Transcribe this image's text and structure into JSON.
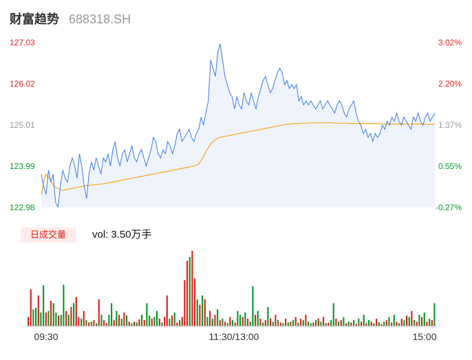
{
  "header": {
    "name": "财富趋势",
    "code": "688318.SH"
  },
  "colors": {
    "up": "#e2231a",
    "down": "#0a9a2c",
    "line": "#3d7be8",
    "avg": "#f5a623",
    "flat": "#999999",
    "fill": "#eef3fc"
  },
  "volume": {
    "badge": "日成交量",
    "label": "vol:",
    "value": "3.50万手"
  },
  "chart_data": [
    {
      "type": "line",
      "title": "",
      "y_left_ticks": [
        "127.03",
        "126.02",
        "125.01",
        "123.99",
        "122.98"
      ],
      "y_right_ticks": [
        "3.02%",
        "2.20%",
        "1.37%",
        "0.55%",
        "-0.27%"
      ],
      "ylim": [
        122.98,
        127.03
      ],
      "prev_close": 125.01,
      "x_labels": [
        "09:30",
        "11:30/13:00",
        "15:00"
      ],
      "series": [
        {
          "values": [
            123.8,
            123.5,
            123.3,
            123.9,
            123.6,
            123.8,
            123.1,
            123.0,
            123.5,
            123.9,
            123.7,
            123.6,
            124.0,
            124.2,
            124.0,
            123.7,
            124.3,
            124.0,
            123.5,
            123.2,
            123.8,
            124.1,
            123.9,
            124.2,
            124.0,
            123.8,
            124.2,
            124.1,
            124.3,
            124.0,
            124.4,
            124.6,
            124.2,
            124.0,
            124.3,
            124.4,
            124.1,
            124.3,
            124.5,
            124.2,
            124.1,
            124.3,
            124.4,
            124.2,
            124.0,
            124.2,
            124.4,
            124.7,
            124.6,
            124.3,
            124.2,
            124.4,
            124.3,
            124.6,
            124.5,
            124.3,
            124.5,
            124.8,
            124.9,
            124.6,
            124.7,
            124.8,
            124.9,
            124.7,
            124.6,
            124.8,
            124.9,
            125.2,
            125.0,
            125.3,
            125.6,
            126.6,
            126.4,
            126.2,
            126.8,
            127.0,
            126.6,
            126.2,
            126.0,
            125.8,
            125.7,
            125.4,
            125.7,
            125.5,
            125.4,
            125.8,
            125.6,
            125.5,
            125.8,
            125.6,
            125.4,
            125.7,
            125.9,
            126.1,
            126.2,
            126.0,
            125.8,
            125.9,
            126.1,
            126.3,
            126.4,
            126.3,
            126.0,
            126.1,
            125.9,
            126.0,
            125.9,
            126.0,
            125.6,
            125.7,
            125.5,
            125.6,
            125.5,
            125.6,
            125.5,
            125.4,
            125.5,
            125.6,
            125.4,
            125.5,
            125.6,
            125.5,
            125.4,
            125.3,
            125.5,
            125.6,
            125.5,
            125.3,
            125.2,
            125.4,
            125.5,
            125.6,
            125.3,
            125.1,
            125.0,
            124.8,
            124.9,
            124.7,
            124.8,
            124.6,
            124.8,
            124.7,
            124.8,
            125.0,
            124.9,
            125.1,
            125.0,
            125.2,
            125.1,
            125.3,
            125.1,
            125.0,
            125.2,
            125.1,
            125.0,
            124.9,
            125.2,
            125.1,
            125.3,
            125.1,
            125.0,
            125.2,
            125.3,
            125.1,
            125.2,
            125.3
          ]
        },
        {
          "values": [
            123.3,
            123.8,
            123.7,
            123.5,
            123.45,
            123.4,
            123.42,
            123.44,
            123.46,
            123.48,
            123.5,
            123.52,
            123.53,
            123.54,
            123.55,
            123.56,
            123.58,
            123.6,
            123.62,
            123.64,
            123.66,
            123.68,
            123.7,
            123.72,
            123.74,
            123.76,
            123.78,
            123.8,
            123.82,
            123.84,
            123.86,
            123.88,
            123.9,
            123.92,
            123.94,
            123.96,
            123.98,
            124.0,
            124.05,
            124.2,
            124.4,
            124.55,
            124.65,
            124.7,
            124.72,
            124.74,
            124.76,
            124.78,
            124.8,
            124.82,
            124.84,
            124.86,
            124.88,
            124.9,
            124.92,
            124.94,
            124.96,
            124.98,
            125.0,
            125.02,
            125.03,
            125.04,
            125.04,
            125.05,
            125.05,
            125.06,
            125.06,
            125.06,
            125.06,
            125.06,
            125.06,
            125.05,
            125.05,
            125.05,
            125.05,
            125.04,
            125.04,
            125.04,
            125.04,
            125.04,
            125.04,
            125.04,
            125.03,
            125.03,
            125.03,
            125.03,
            125.03,
            125.03,
            125.03,
            125.03,
            125.03,
            125.03,
            125.03,
            125.02,
            125.02,
            125.02
          ]
        }
      ]
    },
    {
      "type": "bar",
      "title": "",
      "values": [
        12,
        48,
        22,
        24,
        40,
        18,
        53,
        18,
        20,
        33,
        30,
        18,
        14,
        15,
        54,
        20,
        15,
        25,
        30,
        38,
        12,
        10,
        20,
        8,
        5,
        6,
        8,
        4,
        35,
        15,
        8,
        4,
        15,
        30,
        8,
        20,
        15,
        10,
        18,
        14,
        6,
        4,
        6,
        5,
        9,
        15,
        8,
        30,
        14,
        10,
        12,
        20,
        10,
        5,
        12,
        40,
        10,
        14,
        18,
        5,
        8,
        12,
        60,
        85,
        90,
        98,
        62,
        35,
        28,
        40,
        35,
        12,
        20,
        10,
        15,
        22,
        8,
        10,
        6,
        4,
        12,
        8,
        5,
        20,
        15,
        12,
        18,
        10,
        6,
        52,
        15,
        20,
        10,
        5,
        8,
        25,
        10,
        6,
        15,
        8,
        5,
        4,
        10,
        5,
        6,
        8,
        12,
        5,
        10,
        8,
        15,
        6,
        4,
        5,
        8,
        10,
        6,
        12,
        4,
        5,
        8,
        30,
        10,
        6,
        8,
        12,
        4,
        6,
        5,
        8,
        3,
        10,
        6,
        15,
        4,
        8,
        6,
        4,
        10,
        5,
        3,
        6,
        8,
        12,
        5,
        15,
        6,
        4,
        10,
        8,
        14,
        12,
        20,
        8,
        6,
        15,
        12,
        18,
        6,
        10,
        8,
        30
      ],
      "colors": [
        "up",
        "up",
        "down",
        "down",
        "up",
        "down",
        "down",
        "up",
        "down",
        "up",
        "down",
        "down",
        "up",
        "down",
        "down",
        "up",
        "down",
        "up",
        "down",
        "up",
        "up",
        "down",
        "up",
        "down",
        "up",
        "down",
        "up",
        "down",
        "up",
        "down",
        "up",
        "up",
        "down",
        "down",
        "up",
        "down",
        "up",
        "down",
        "up",
        "down",
        "up",
        "down",
        "up",
        "down",
        "up",
        "down",
        "up",
        "down",
        "down",
        "up",
        "down",
        "down",
        "up",
        "down",
        "up",
        "up",
        "down",
        "up",
        "down",
        "up",
        "down",
        "up",
        "up",
        "up",
        "down",
        "up",
        "up",
        "down",
        "up",
        "down",
        "up",
        "down",
        "up",
        "down",
        "up",
        "down",
        "up",
        "down",
        "up",
        "down",
        "up",
        "down",
        "up",
        "down",
        "down",
        "up",
        "down",
        "up",
        "down",
        "down",
        "up",
        "down",
        "up",
        "down",
        "up",
        "down",
        "up",
        "down",
        "up",
        "down",
        "up",
        "down",
        "up",
        "down",
        "up",
        "down",
        "up",
        "down",
        "up",
        "down",
        "up",
        "down",
        "down",
        "up",
        "down",
        "up",
        "down",
        "up",
        "down",
        "up",
        "down",
        "down",
        "up",
        "down",
        "up",
        "down",
        "up",
        "down",
        "up",
        "down",
        "up",
        "down",
        "up",
        "down",
        "up",
        "down",
        "up",
        "down",
        "up",
        "down",
        "up",
        "down",
        "up",
        "down",
        "up",
        "down",
        "up",
        "down",
        "up",
        "down",
        "up",
        "down",
        "up",
        "down",
        "up",
        "down",
        "up",
        "down",
        "up",
        "down",
        "up",
        "down",
        "flat"
      ]
    }
  ]
}
